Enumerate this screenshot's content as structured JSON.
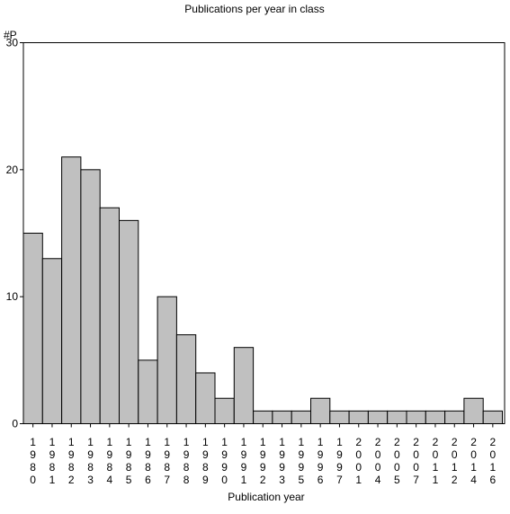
{
  "chart_data": {
    "type": "bar",
    "title": "Publications per year in class",
    "ylabel": "#P",
    "xlabel": "Publication year",
    "categories": [
      "1980",
      "1981",
      "1982",
      "1983",
      "1984",
      "1985",
      "1986",
      "1987",
      "1988",
      "1989",
      "1990",
      "1991",
      "1992",
      "1993",
      "1995",
      "1996",
      "1997",
      "2001",
      "2004",
      "2005",
      "2007",
      "2011",
      "2012",
      "2014",
      "2016"
    ],
    "values": [
      15,
      13,
      21,
      20,
      17,
      16,
      5,
      10,
      7,
      4,
      2,
      6,
      1,
      1,
      1,
      2,
      1,
      1,
      1,
      1,
      1,
      1,
      1,
      2,
      1
    ],
    "ylim": [
      0,
      30
    ],
    "yticks": [
      0,
      10,
      20,
      30
    ],
    "grid": false,
    "bar_color": "#c0c0c0",
    "bar_edge_color": "#000000"
  }
}
